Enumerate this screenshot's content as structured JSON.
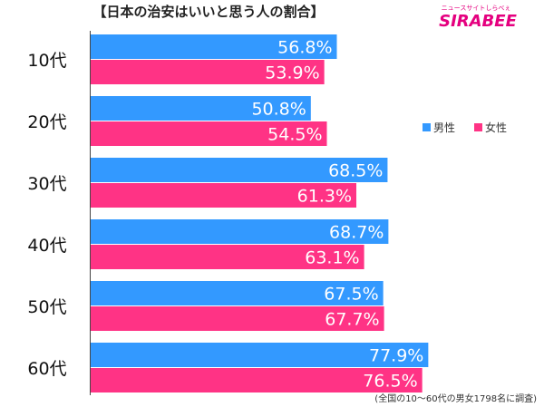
{
  "header": {
    "title": "【日本の治安はいいと思う人の割合】",
    "brand_tagline": "ニュースサイトしらべぇ",
    "brand_name": "SIRABEE"
  },
  "footnote": "(全国の10〜60代の男女1798名に調査)",
  "colors": {
    "male": "#3399ff",
    "female": "#ff3385",
    "brand": "#e5007f"
  },
  "chart_data": {
    "type": "bar",
    "orientation": "horizontal",
    "categories": [
      "10代",
      "20代",
      "30代",
      "40代",
      "50代",
      "60代"
    ],
    "series": [
      {
        "name": "男性",
        "values": [
          56.8,
          50.8,
          68.5,
          68.7,
          67.5,
          77.9
        ]
      },
      {
        "name": "女性",
        "values": [
          53.9,
          54.5,
          61.3,
          63.1,
          67.7,
          76.5
        ]
      }
    ],
    "value_labels": {
      "male": [
        "56.8%",
        "50.8%",
        "68.5%",
        "68.7%",
        "67.5%",
        "77.9%"
      ],
      "female": [
        "53.9%",
        "54.5%",
        "61.3%",
        "63.1%",
        "67.7%",
        "76.5%"
      ]
    },
    "legend": {
      "position": "right",
      "items": [
        "男性",
        "女性"
      ]
    },
    "xlim": [
      0,
      100
    ],
    "grid": false,
    "title": "",
    "xlabel": "",
    "ylabel": ""
  }
}
